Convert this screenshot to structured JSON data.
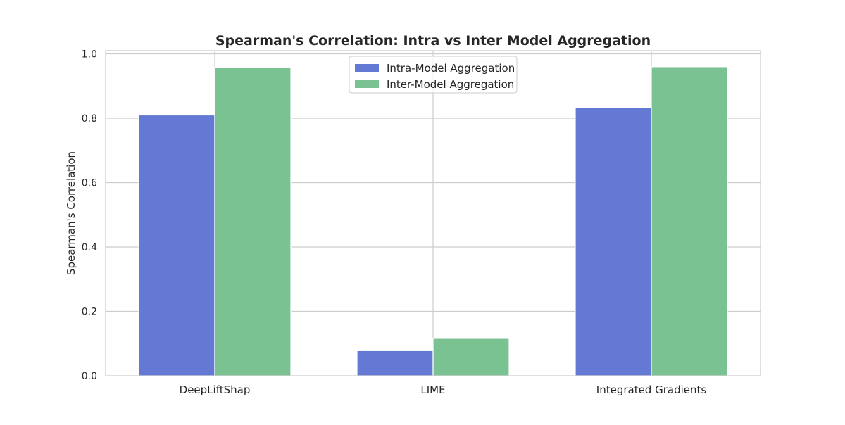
{
  "chart_data": {
    "type": "bar",
    "title": "Spearman's Correlation: Intra vs Inter Model Aggregation",
    "xlabel": "",
    "ylabel": "Spearman's Correlation",
    "categories": [
      "DeepLiftShap",
      "LIME",
      "Integrated Gradients"
    ],
    "series": [
      {
        "name": "Intra-Model Aggregation",
        "color": "#6379d3",
        "values": [
          0.81,
          0.078,
          0.834
        ]
      },
      {
        "name": "Inter-Model Aggregation",
        "color": "#7bc293",
        "values": [
          0.958,
          0.116,
          0.96
        ]
      }
    ],
    "ylim": [
      0,
      1.01
    ],
    "yticks": [
      "0.0",
      "0.2",
      "0.4",
      "0.6",
      "0.8",
      "1.0"
    ],
    "grid": true,
    "legend_position": "top-center"
  }
}
